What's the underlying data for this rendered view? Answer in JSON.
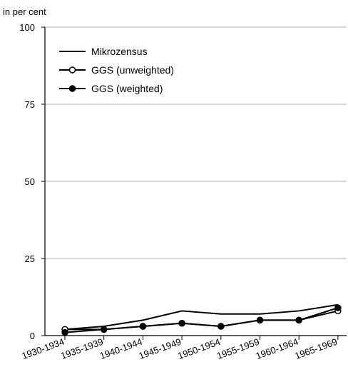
{
  "chart_data": {
    "type": "line",
    "title": "",
    "xlabel": "",
    "ylabel": "in per cent",
    "ylim": [
      0,
      100
    ],
    "yticks": [
      0,
      25,
      50,
      75,
      100
    ],
    "grid": "horizontal",
    "legend_position": "top-left",
    "categories": [
      "1930-1934",
      "1935-1939",
      "1940-1944",
      "1945-1949",
      "1950-1954",
      "1955-1959",
      "1960-1964",
      "1965-1969"
    ],
    "series": [
      {
        "name": "Mikrozensus",
        "marker": "none",
        "color": "#000000",
        "values": [
          2,
          3,
          5,
          8,
          7,
          7,
          8,
          10
        ]
      },
      {
        "name": "GGS (unweighted)",
        "marker": "open-circle",
        "color": "#000000",
        "values": [
          2,
          2,
          3,
          4,
          3,
          5,
          5,
          8
        ]
      },
      {
        "name": "GGS (weighted)",
        "marker": "filled-circle",
        "color": "#000000",
        "values": [
          1,
          2,
          3,
          4,
          3,
          5,
          5,
          9
        ]
      }
    ]
  }
}
